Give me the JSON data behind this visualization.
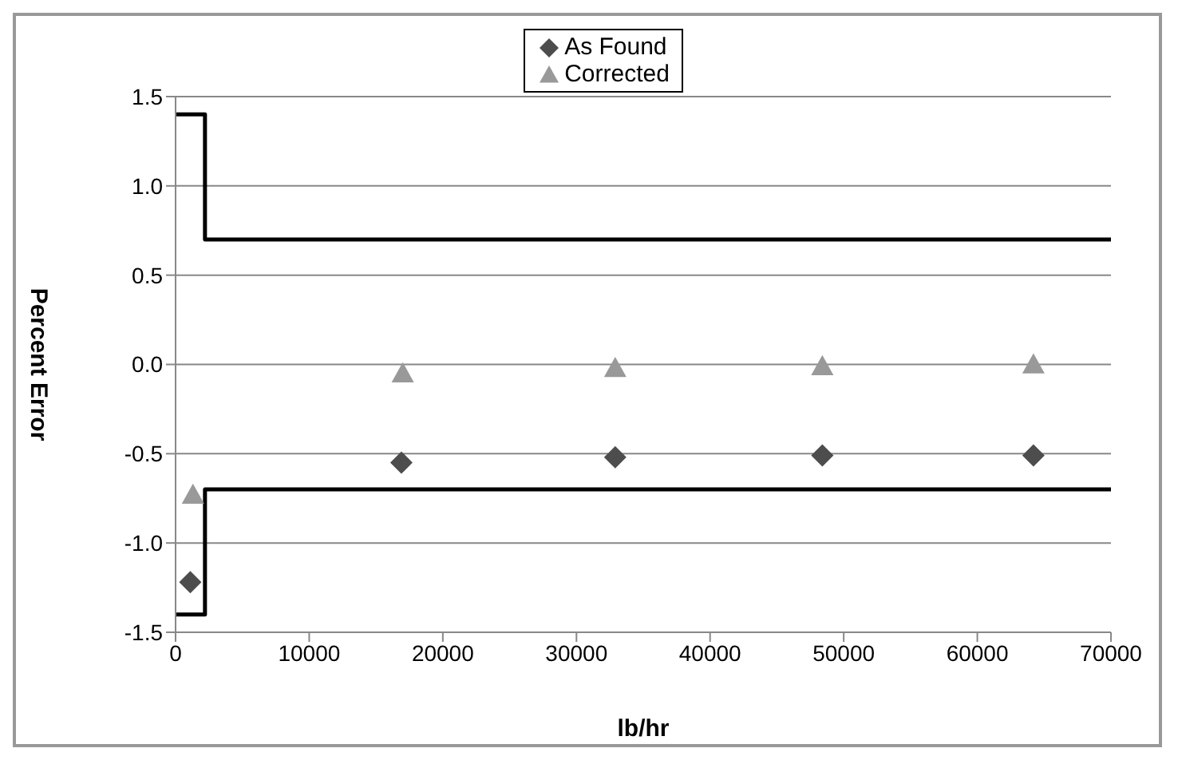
{
  "chart_data": {
    "type": "scatter",
    "xlabel": "lb/hr",
    "ylabel": "Percent Error",
    "xlim": [
      0,
      70000
    ],
    "xticks": [
      0,
      10000,
      20000,
      30000,
      40000,
      50000,
      60000,
      70000
    ],
    "ylim": [
      -1.5,
      1.5
    ],
    "yticks": [
      -1.5,
      {
        "value": -1,
        "label": "-1.0"
      },
      -0.5,
      {
        "value": 0,
        "label": "0.0"
      },
      0.5,
      {
        "value": 1,
        "label": "1.0"
      },
      1.5
    ],
    "grid": "y",
    "legend": "top",
    "series": [
      {
        "name": "As Found",
        "marker": "diamond",
        "color": "#4d4d4d",
        "x": [
          1100,
          16900,
          32900,
          48400,
          64200
        ],
        "values": [
          -1.22,
          -0.55,
          -0.52,
          -0.51,
          -0.51
        ]
      },
      {
        "name": "Corrected",
        "marker": "triangle",
        "color": "#999999",
        "x": [
          1300,
          17000,
          32900,
          48400,
          64200
        ],
        "values": [
          -0.73,
          -0.05,
          -0.02,
          -0.01,
          0.0
        ]
      },
      {
        "type": "line",
        "color": "#000000",
        "x": [
          0,
          2200,
          2200,
          70000
        ],
        "values": [
          1.4,
          1.4,
          0.7,
          0.7
        ]
      },
      {
        "type": "line",
        "color": "#000000",
        "x": [
          0,
          2200,
          2200,
          70000
        ],
        "values": [
          -1.4,
          -1.4,
          -0.7,
          -0.7
        ]
      }
    ]
  }
}
